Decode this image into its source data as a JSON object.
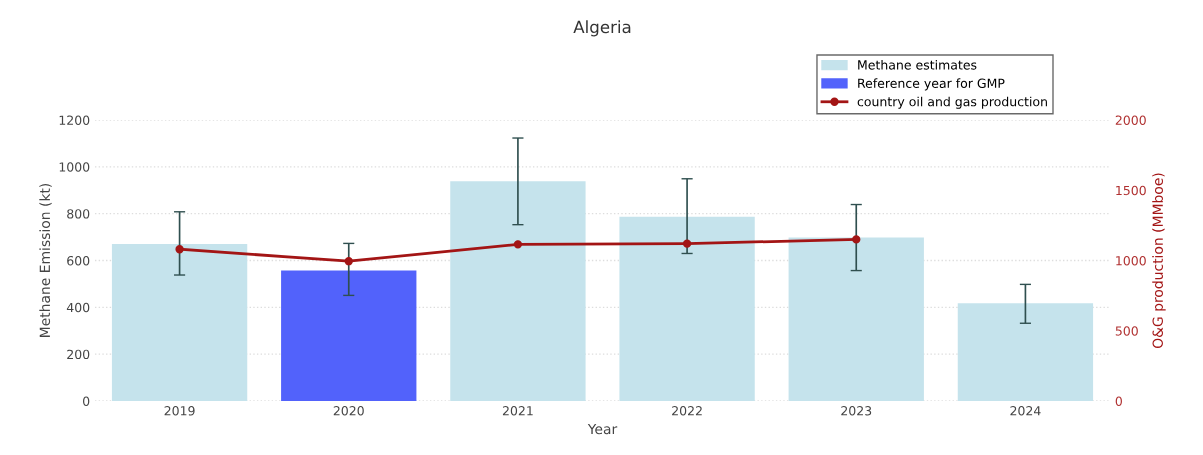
{
  "chart_data": {
    "type": "bar",
    "title": "Algeria",
    "xlabel": "Year",
    "ylabel": "Methane Emission (kt)",
    "y2label": "O&G production (MMboe)",
    "categories": [
      "2019",
      "2020",
      "2021",
      "2022",
      "2023",
      "2024"
    ],
    "series": [
      {
        "name": "Methane estimates",
        "color": "#c5e3ec",
        "values": [
          670,
          null,
          938,
          787,
          698,
          417
        ],
        "errors": [
          [
            538,
            808
          ],
          null,
          [
            753,
            1123
          ],
          [
            630,
            949
          ],
          [
            557,
            839
          ],
          [
            332,
            498
          ]
        ]
      },
      {
        "name": "Reference year for GMP",
        "color": "#5262fb",
        "values": [
          null,
          557,
          null,
          null,
          null,
          null
        ],
        "errors": [
          null,
          [
            451,
            673
          ],
          null,
          null,
          null,
          null
        ]
      },
      {
        "name": "country oil and gas production",
        "type": "line",
        "axis": "y2",
        "color": "#a31515",
        "marker": "circle",
        "values": [
          1080,
          995,
          1115,
          1120,
          1150,
          null
        ]
      }
    ],
    "ylim": [
      0,
      1200
    ],
    "yticks": [
      0,
      200,
      400,
      600,
      800,
      1000,
      1200
    ],
    "y2lim": [
      0,
      2000
    ],
    "y2ticks": [
      0,
      500,
      1000,
      1500,
      2000
    ],
    "grid": "y",
    "legend": "top right"
  }
}
